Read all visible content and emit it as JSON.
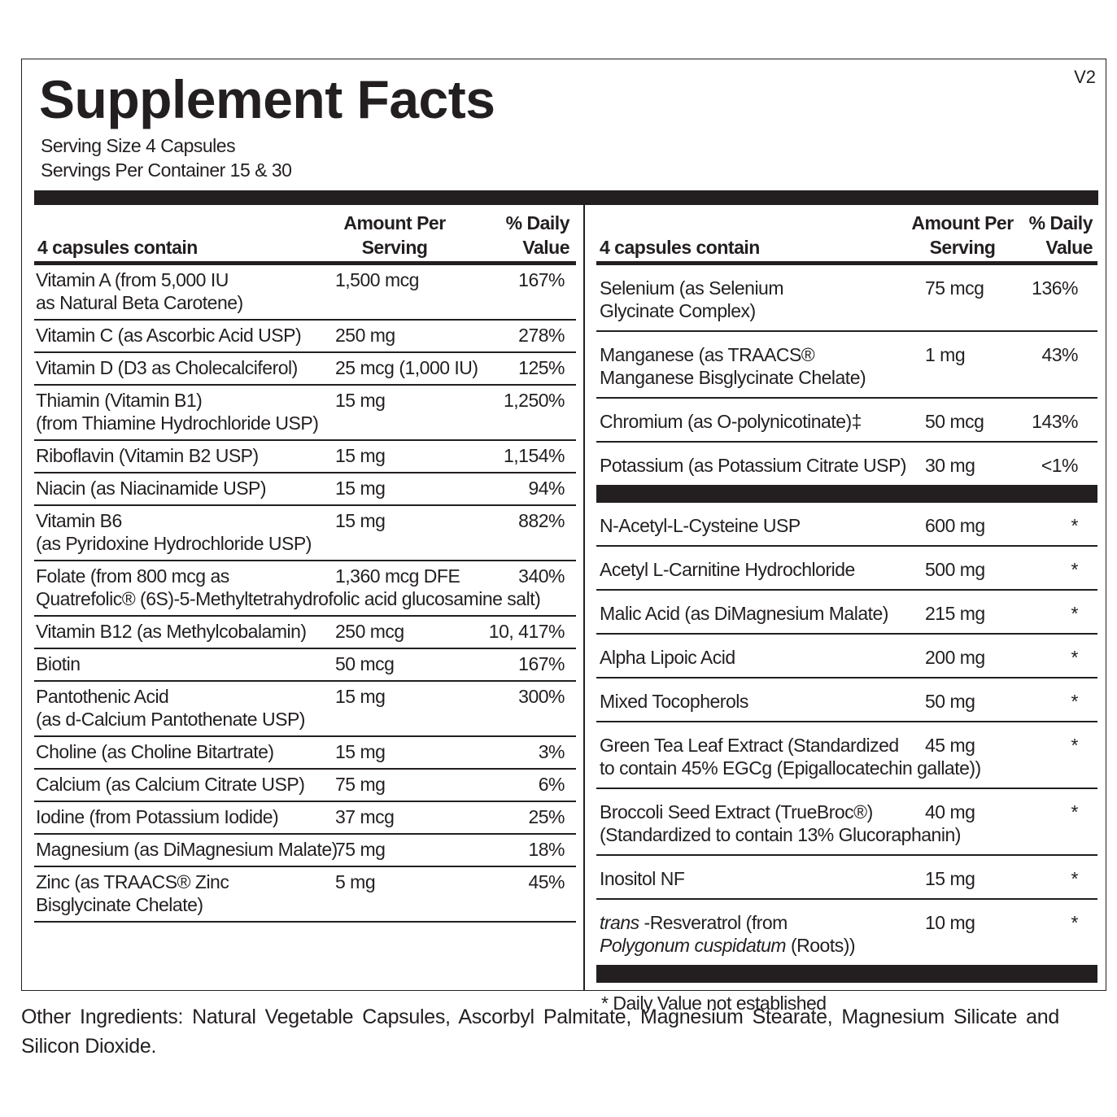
{
  "title": "Supplement Facts",
  "version": "V2",
  "serving_size": "Serving Size  4 Capsules",
  "servings_per_container": "Servings Per Container  15 & 30",
  "left": {
    "header": {
      "col1": "4 capsules contain",
      "col2a": "Amount Per",
      "col2b": "Serving",
      "col3a": "% Daily",
      "col3b": "Value"
    },
    "rows": [
      {
        "line1": "Vitamin A (from 5,000 IU",
        "line2": "as Natural Beta Carotene)",
        "amount": "1,500 mcg",
        "dv": "167%"
      },
      {
        "line1": "Vitamin C (as Ascorbic Acid USP)",
        "amount": "250 mg",
        "dv": "278%"
      },
      {
        "line1": "Vitamin D (D3 as Cholecalciferol)",
        "amount": "25 mcg (1,000 IU)",
        "dv": "125%"
      },
      {
        "line1": "Thiamin (Vitamin B1)",
        "line2": "(from Thiamine Hydrochloride USP)",
        "amount": "15 mg",
        "dv": "1,250%"
      },
      {
        "line1": "Riboflavin (Vitamin B2 USP)",
        "amount": "15 mg",
        "dv": "1,154%"
      },
      {
        "line1": "Niacin (as Niacinamide USP)",
        "amount": "15 mg",
        "dv": "94%"
      },
      {
        "line1": "Vitamin B6",
        "line2": "(as Pyridoxine Hydrochloride USP)",
        "amount": "15 mg",
        "dv": "882%"
      },
      {
        "line1": "Folate (from 800 mcg as",
        "line2": "Quatrefolic® (6S)-5-Methyltetrahydrofolic acid glucosamine salt)",
        "amount": "1,360 mcg DFE",
        "dv": "340%"
      },
      {
        "line1": "Vitamin B12 (as Methylcobalamin)",
        "amount": "250 mcg",
        "dv": "10, 417%"
      },
      {
        "line1": "Biotin",
        "amount": "50 mcg",
        "dv": "167%"
      },
      {
        "line1": "Pantothenic Acid",
        "line2": "(as d-Calcium Pantothenate USP)",
        "amount": "15 mg",
        "dv": "300%"
      },
      {
        "line1": "Choline (as Choline Bitartrate)",
        "amount": "15 mg",
        "dv": "3%"
      },
      {
        "line1": "Calcium (as Calcium Citrate USP)",
        "amount": "75 mg",
        "dv": "6%"
      },
      {
        "line1": "Iodine (from Potassium Iodide)",
        "amount": "37 mcg",
        "dv": "25%"
      },
      {
        "line1": "Magnesium (as DiMagnesium Malate)",
        "amount": "75 mg",
        "dv": "18%"
      },
      {
        "line1": "Zinc (as TRAACS® Zinc",
        "line2": "Bisglycinate Chelate)",
        "amount": "5 mg",
        "dv": "45%"
      }
    ]
  },
  "right": {
    "header": {
      "col1": "4 capsules contain",
      "col2a": "Amount Per",
      "col2b": "Serving",
      "col3a": "% Daily",
      "col3b": "Value"
    },
    "rows_a": [
      {
        "line1": "Selenium (as Selenium",
        "line2": "Glycinate Complex)",
        "amount": "75 mcg",
        "dv": "136%"
      },
      {
        "line1": "Manganese (as TRAACS®",
        "line2": "Manganese Bisglycinate Chelate)",
        "amount": "1 mg",
        "dv": "43%"
      },
      {
        "line1": "Chromium (as O-polynicotinate)‡",
        "amount": "50 mcg",
        "dv": "143%"
      },
      {
        "line1": "Potassium (as Potassium Citrate USP)",
        "amount": "30 mg",
        "dv": "<1%"
      }
    ],
    "rows_b": [
      {
        "line1": "N-Acetyl-L-Cysteine USP",
        "amount": "600 mg",
        "dv": "*"
      },
      {
        "line1": "Acetyl L-Carnitine Hydrochloride",
        "amount": "500 mg",
        "dv": "*"
      },
      {
        "line1": "Malic Acid (as DiMagnesium Malate)",
        "amount": "215 mg",
        "dv": "*"
      },
      {
        "line1": "Alpha Lipoic Acid",
        "amount": "200 mg",
        "dv": "*"
      },
      {
        "line1": "Mixed Tocopherols",
        "amount": "50 mg",
        "dv": "*"
      },
      {
        "line1": "Green Tea Leaf Extract  (Standardized",
        "line2": "to contain 45% EGCg (Epigallocatechin gallate))",
        "amount": "45 mg",
        "dv": "*"
      },
      {
        "line1": "Broccoli Seed Extract (TrueBroc®)",
        "line2": "(Standardized to contain 13% Glucoraphanin)",
        "amount": "40 mg",
        "dv": "*"
      },
      {
        "line1": "Inositol NF",
        "amount": "15 mg",
        "dv": "*"
      },
      {
        "line1_italic": "trans",
        "line1": " -Resveratrol (from",
        "line2_italic": "Polygonum cuspidatum",
        "line2": " (Roots))",
        "amount": "10 mg",
        "dv": "*"
      }
    ],
    "footnote": "*  Daily Value not established"
  },
  "other_ingredients": "Other Ingredients: Natural Vegetable Capsules, Ascorbyl Palmitate, Magnesium Stearate, Magnesium Silicate and Silicon Dioxide."
}
